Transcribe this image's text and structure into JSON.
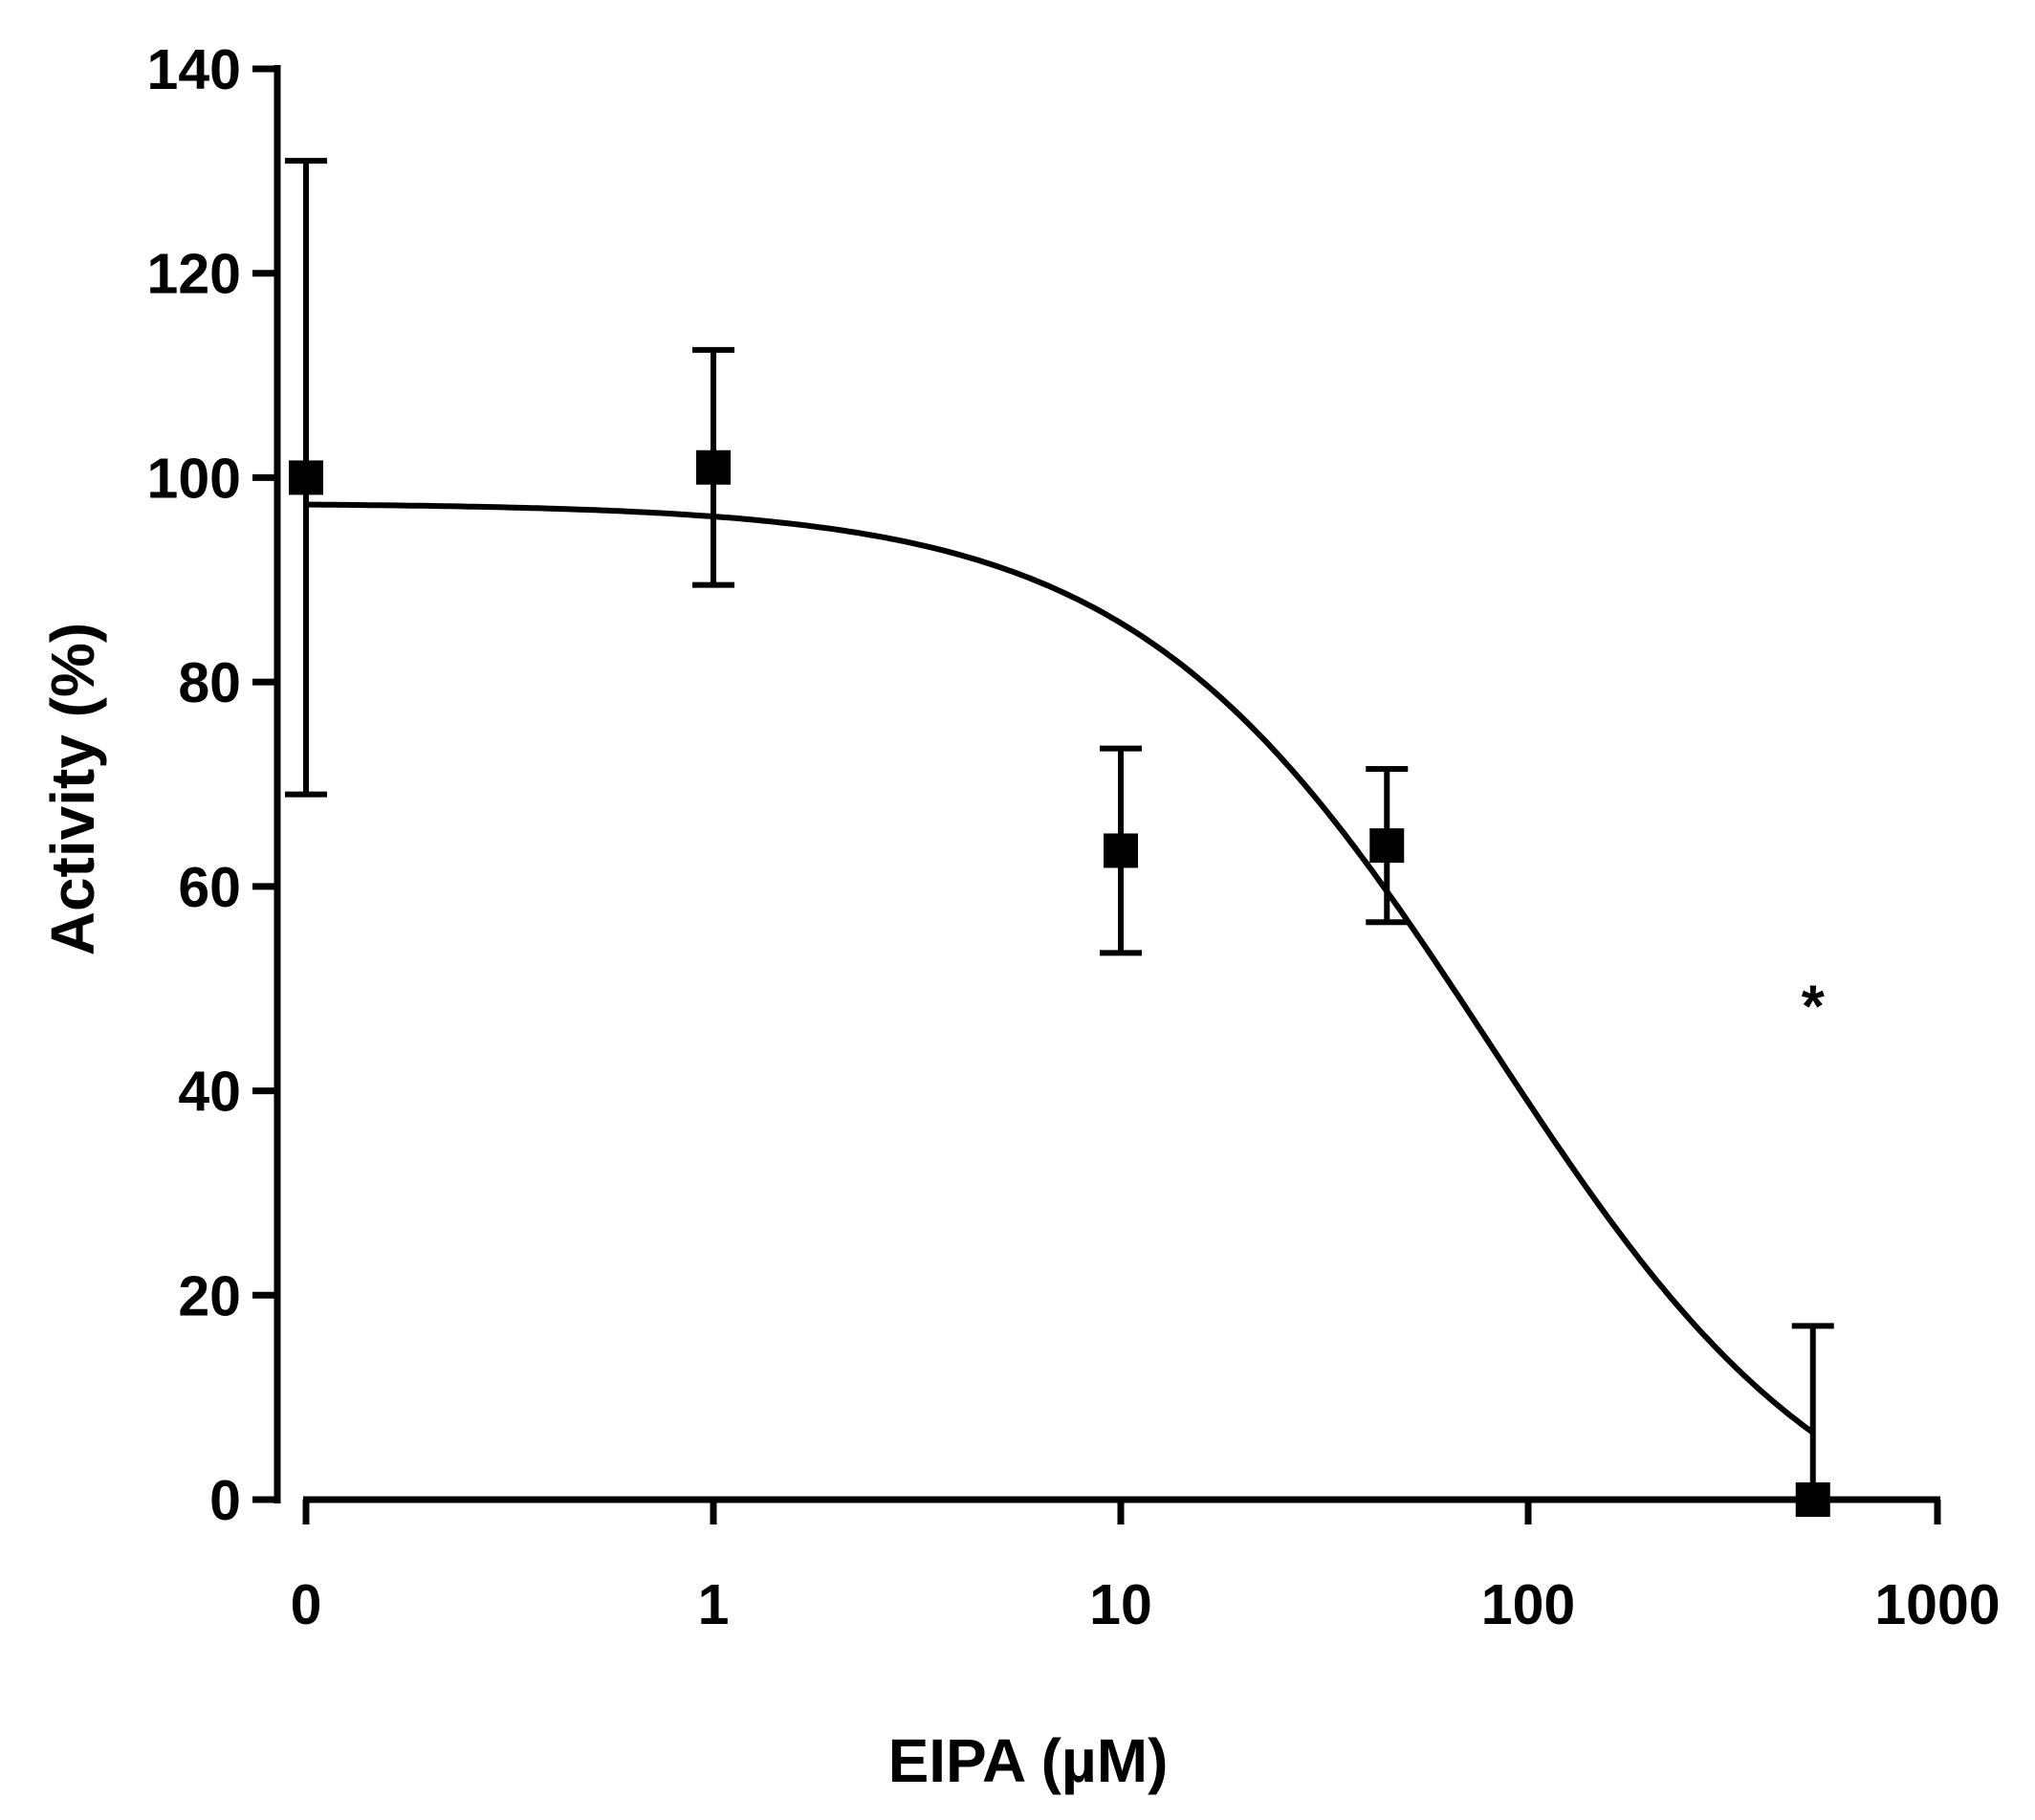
{
  "chart_data": {
    "type": "scatter",
    "title": "",
    "xlabel": "EIPA (µM)",
    "ylabel": "Activity (%)",
    "x_scale": "log",
    "x_ticks": [
      "0",
      "1",
      "10",
      "100",
      "1000"
    ],
    "y_ticks": [
      "0",
      "20",
      "40",
      "60",
      "80",
      "100",
      "120",
      "140"
    ],
    "ylim": [
      0,
      140
    ],
    "grid": false,
    "legend": "none",
    "colors": {
      "axis": "#000000",
      "marker": "#000000",
      "curve": "#000000",
      "background": "#ffffff"
    },
    "points": [
      {
        "x_label": "0",
        "y": 100,
        "err_low": 69,
        "err_high": 131
      },
      {
        "x": 1,
        "y": 101,
        "err_low": 89.5,
        "err_high": 112.5
      },
      {
        "x": 10,
        "y": 63.5,
        "err_low": 53.5,
        "err_high": 73.5
      },
      {
        "x": 45,
        "y": 64,
        "err_low": 56.5,
        "err_high": 71.5
      },
      {
        "x": 500,
        "y": 0,
        "err_low": 0,
        "err_high": 17
      }
    ],
    "fit_curve": {
      "model": "sigmoidal dose-response (inhibition)",
      "top": 97.5,
      "bottom": -8,
      "ic50": 80,
      "hill_slope": 1
    },
    "annotations": [
      {
        "text": "*",
        "x": 500,
        "y": 50
      }
    ]
  }
}
